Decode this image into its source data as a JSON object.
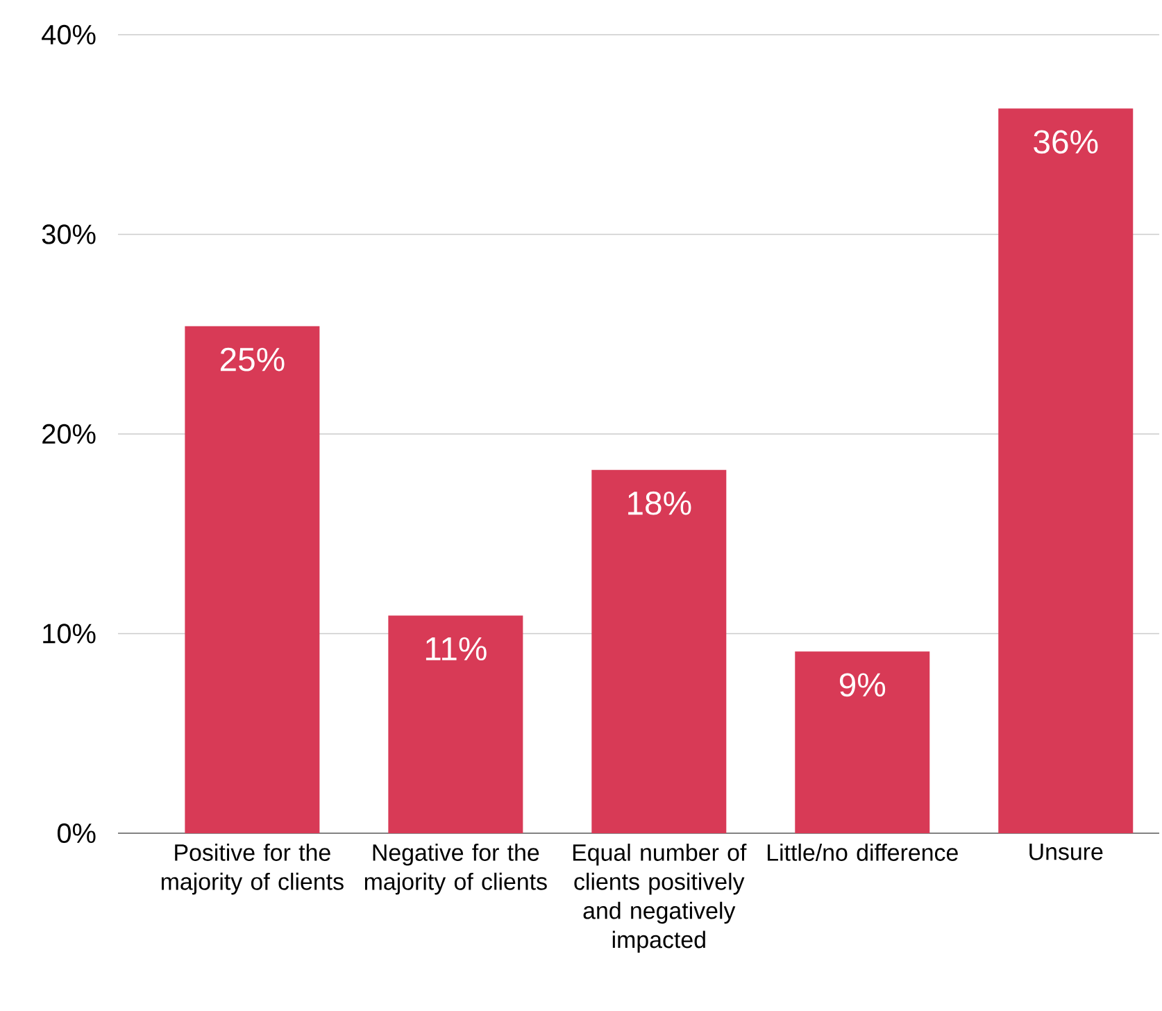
{
  "chart_data": {
    "type": "bar",
    "categories": [
      "Positive for the majority of clients",
      "Negative for the majority of clients",
      "Equal number of clients positively and negatively impacted",
      "Little/no difference",
      "Unsure"
    ],
    "values": [
      25.4,
      10.9,
      18.2,
      9.1,
      36.3
    ],
    "value_labels": [
      "25%",
      "11%",
      "18%",
      "9%",
      "36%"
    ],
    "color": "#d83a56",
    "ylim": [
      0,
      40
    ],
    "yticks": [
      {
        "value": 0,
        "label": "0%"
      },
      {
        "value": 10,
        "label": "10%"
      },
      {
        "value": 20,
        "label": "20%"
      },
      {
        "value": 30,
        "label": "30%"
      },
      {
        "value": 40,
        "label": "40%"
      }
    ],
    "grid": "y"
  }
}
